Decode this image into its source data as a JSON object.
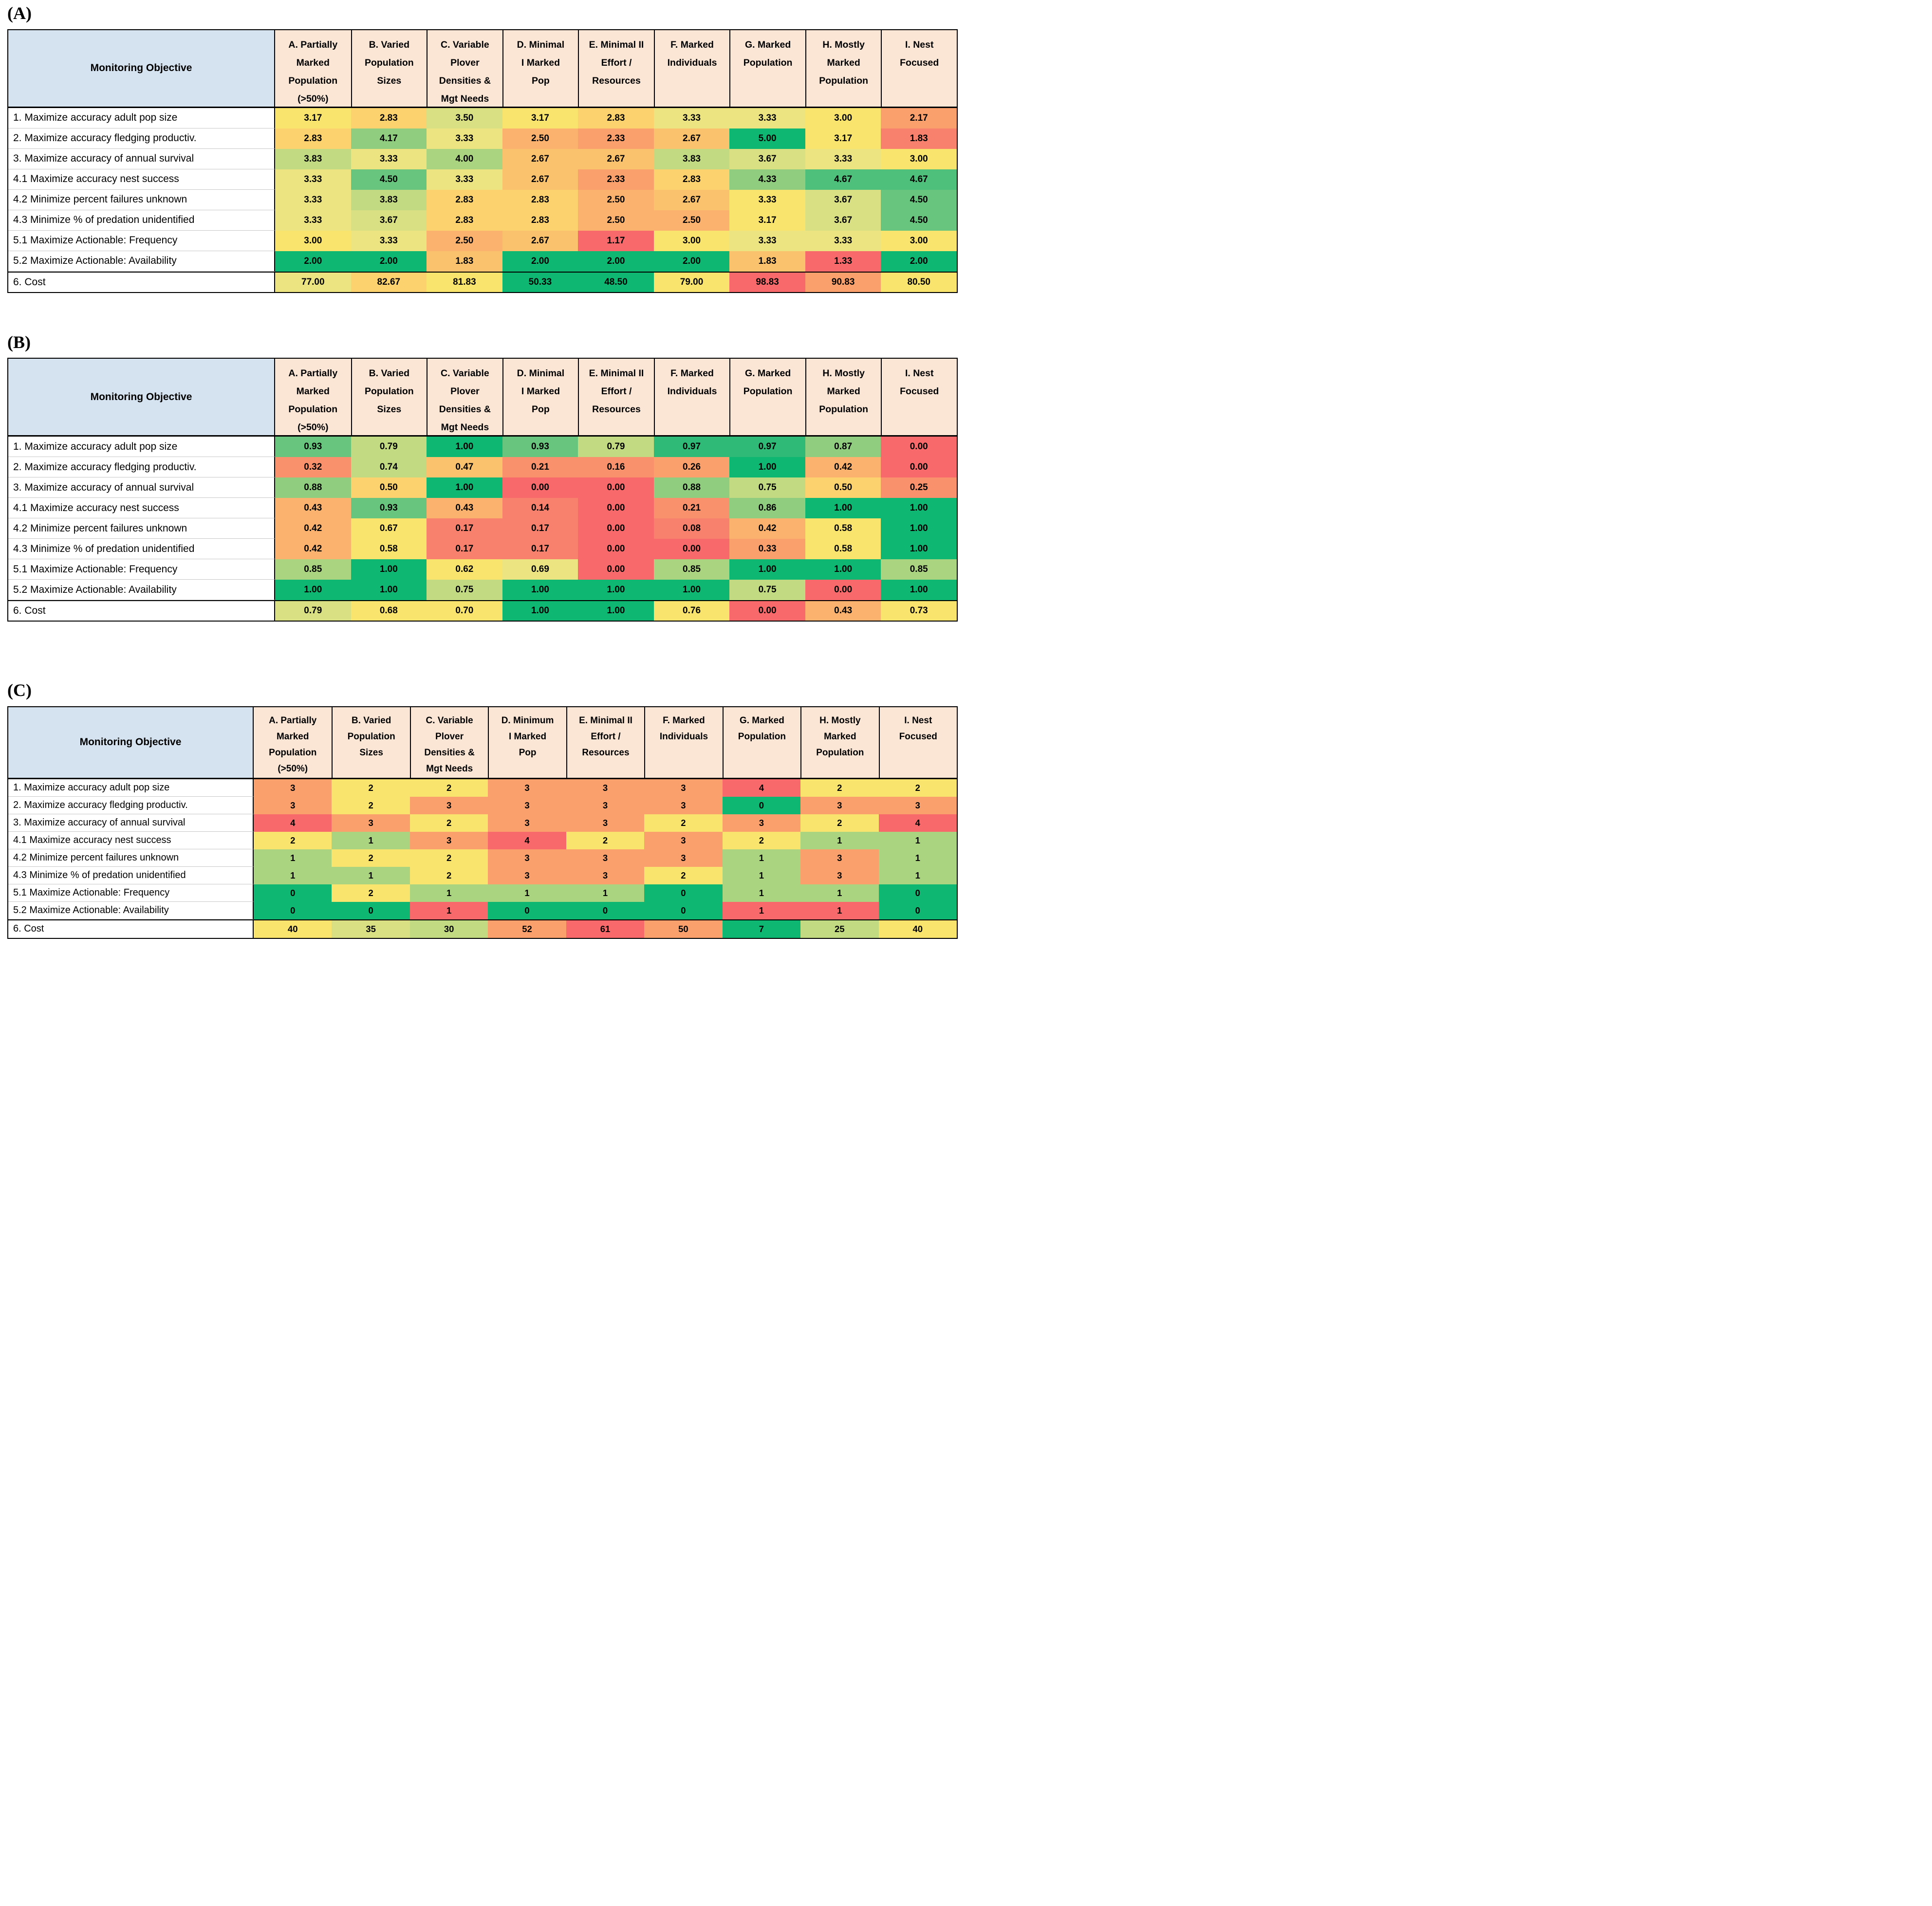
{
  "corner_label": "Monitoring Objective",
  "colors": {
    "header_bg": "#FBE5D5",
    "corner_bg": "#D5E3F1",
    "row_line": "#C8C8C8",
    "border": "#000000",
    "palette": {
      "G": "#0EB873",
      "G2": "#2FBB77",
      "g0": "#4FC07B",
      "g1": "#68C57D",
      "g2": "#90CD7E",
      "g3": "#ABD480",
      "g4": "#C2DB82",
      "yg": "#D8E083",
      "y1": "#EBE481",
      "Y": "#F9E56D",
      "yo": "#FBD26D",
      "o1": "#FBC26D",
      "o2": "#FBB26E",
      "o3": "#FAA06D",
      "o4": "#F9926C",
      "r1": "#F8816D",
      "R": "#F8696B"
    }
  },
  "chart_data": [
    {
      "type": "heatmap",
      "panel": "(A)",
      "corner_label": "Monitoring Objective",
      "columns": [
        "A. Partially\nMarked\nPopulation\n(>50%)",
        "B. Varied\nPopulation\nSizes",
        "C. Variable\nPlover\nDensities &\nMgt Needs",
        "D. Minimal\nI Marked\nPop",
        "E. Minimal II\nEffort /\nResources",
        "F. Marked\nIndividuals",
        "G. Marked\nPopulation",
        "H. Mostly\nMarked\nPopulation",
        "I. Nest\nFocused"
      ],
      "rows": [
        {
          "label": "1. Maximize accuracy adult pop size",
          "values": [
            "3.17",
            "2.83",
            "3.50",
            "3.17",
            "2.83",
            "3.33",
            "3.33",
            "3.00",
            "2.17"
          ],
          "colors": [
            "Y",
            "yo",
            "yg",
            "Y",
            "yo",
            "y1",
            "y1",
            "Y",
            "o3"
          ]
        },
        {
          "label": "2. Maximize accuracy fledging productiv.",
          "values": [
            "2.83",
            "4.17",
            "3.33",
            "2.50",
            "2.33",
            "2.67",
            "5.00",
            "3.17",
            "1.83"
          ],
          "colors": [
            "yo",
            "g2",
            "y1",
            "o2",
            "o3",
            "o1",
            "G",
            "Y",
            "r1"
          ]
        },
        {
          "label": "3. Maximize accuracy of annual survival",
          "values": [
            "3.83",
            "3.33",
            "4.00",
            "2.67",
            "2.67",
            "3.83",
            "3.67",
            "3.33",
            "3.00"
          ],
          "colors": [
            "g4",
            "y1",
            "g3",
            "o1",
            "o1",
            "g4",
            "yg",
            "y1",
            "Y"
          ]
        },
        {
          "label": "4.1 Maximize accuracy nest success",
          "values": [
            "3.33",
            "4.50",
            "3.33",
            "2.67",
            "2.33",
            "2.83",
            "4.33",
            "4.67",
            "4.67"
          ],
          "colors": [
            "y1",
            "g1",
            "y1",
            "o1",
            "o3",
            "yo",
            "g2",
            "g0",
            "g0"
          ]
        },
        {
          "label": "4.2 Minimize percent failures unknown",
          "values": [
            "3.33",
            "3.83",
            "2.83",
            "2.83",
            "2.50",
            "2.67",
            "3.33",
            "3.67",
            "4.50"
          ],
          "colors": [
            "y1",
            "g4",
            "yo",
            "yo",
            "o2",
            "o1",
            "Y",
            "yg",
            "g1"
          ]
        },
        {
          "label": "4.3 Minimize % of predation unidentified",
          "values": [
            "3.33",
            "3.67",
            "2.83",
            "2.83",
            "2.50",
            "2.50",
            "3.17",
            "3.67",
            "4.50"
          ],
          "colors": [
            "y1",
            "yg",
            "yo",
            "yo",
            "o2",
            "o2",
            "Y",
            "yg",
            "g1"
          ]
        },
        {
          "label": "5.1 Maximize Actionable: Frequency",
          "values": [
            "3.00",
            "3.33",
            "2.50",
            "2.67",
            "1.17",
            "3.00",
            "3.33",
            "3.33",
            "3.00"
          ],
          "colors": [
            "Y",
            "y1",
            "o2",
            "o1",
            "R",
            "Y",
            "y1",
            "y1",
            "Y"
          ]
        },
        {
          "label": "5.2 Maximize Actionable: Availability",
          "values": [
            "2.00",
            "2.00",
            "1.83",
            "2.00",
            "2.00",
            "2.00",
            "1.83",
            "1.33",
            "2.00"
          ],
          "colors": [
            "G",
            "G",
            "o1",
            "G",
            "G",
            "G",
            "o1",
            "R",
            "G"
          ]
        },
        {
          "label": "6. Cost",
          "values": [
            "77.00",
            "82.67",
            "81.83",
            "50.33",
            "48.50",
            "79.00",
            "98.83",
            "90.83",
            "80.50"
          ],
          "colors": [
            "y1",
            "yo",
            "Y",
            "G",
            "G",
            "Y",
            "R",
            "o3",
            "Y"
          ]
        }
      ]
    },
    {
      "type": "heatmap",
      "panel": "(B)",
      "corner_label": "Monitoring Objective",
      "columns": [
        "A. Partially\nMarked\nPopulation\n(>50%)",
        "B. Varied\nPopulation\nSizes",
        "C. Variable\nPlover\nDensities &\nMgt Needs",
        "D. Minimal\nI Marked\nPop",
        "E. Minimal II\nEffort /\nResources",
        "F. Marked\nIndividuals",
        "G. Marked\nPopulation",
        "H. Mostly\nMarked\nPopulation",
        "I. Nest\nFocused"
      ],
      "rows": [
        {
          "label": "1. Maximize accuracy adult pop size",
          "values": [
            "0.93",
            "0.79",
            "1.00",
            "0.93",
            "0.79",
            "0.97",
            "0.97",
            "0.87",
            "0.00"
          ],
          "colors": [
            "g1",
            "g4",
            "G",
            "g1",
            "g4",
            "G2",
            "G2",
            "g2",
            "R"
          ]
        },
        {
          "label": "2. Maximize accuracy fledging productiv.",
          "values": [
            "0.32",
            "0.74",
            "0.47",
            "0.21",
            "0.16",
            "0.26",
            "1.00",
            "0.42",
            "0.00"
          ],
          "colors": [
            "o4",
            "g4",
            "o1",
            "o4",
            "o4",
            "o3",
            "G",
            "o2",
            "R"
          ]
        },
        {
          "label": "3. Maximize accuracy of annual survival",
          "values": [
            "0.88",
            "0.50",
            "1.00",
            "0.00",
            "0.00",
            "0.88",
            "0.75",
            "0.50",
            "0.25"
          ],
          "colors": [
            "g2",
            "yo",
            "G",
            "R",
            "R",
            "g2",
            "g4",
            "yo",
            "o4"
          ]
        },
        {
          "label": "4.1 Maximize accuracy nest success",
          "values": [
            "0.43",
            "0.93",
            "0.43",
            "0.14",
            "0.00",
            "0.21",
            "0.86",
            "1.00",
            "1.00"
          ],
          "colors": [
            "o2",
            "g1",
            "o2",
            "r1",
            "R",
            "o4",
            "g2",
            "G",
            "G"
          ]
        },
        {
          "label": "4.2 Minimize percent failures unknown",
          "values": [
            "0.42",
            "0.67",
            "0.17",
            "0.17",
            "0.00",
            "0.08",
            "0.42",
            "0.58",
            "1.00"
          ],
          "colors": [
            "o2",
            "Y",
            "r1",
            "r1",
            "R",
            "r1",
            "o2",
            "Y",
            "G"
          ]
        },
        {
          "label": "4.3 Minimize % of predation unidentified",
          "values": [
            "0.42",
            "0.58",
            "0.17",
            "0.17",
            "0.00",
            "0.00",
            "0.33",
            "0.58",
            "1.00"
          ],
          "colors": [
            "o2",
            "Y",
            "r1",
            "r1",
            "R",
            "R",
            "o3",
            "Y",
            "G"
          ]
        },
        {
          "label": "5.1 Maximize Actionable: Frequency",
          "values": [
            "0.85",
            "1.00",
            "0.62",
            "0.69",
            "0.00",
            "0.85",
            "1.00",
            "1.00",
            "0.85"
          ],
          "colors": [
            "g3",
            "G",
            "Y",
            "y1",
            "R",
            "g3",
            "G",
            "G",
            "g3"
          ]
        },
        {
          "label": "5.2 Maximize Actionable: Availability",
          "values": [
            "1.00",
            "1.00",
            "0.75",
            "1.00",
            "1.00",
            "1.00",
            "0.75",
            "0.00",
            "1.00"
          ],
          "colors": [
            "G",
            "G",
            "g4",
            "G",
            "G",
            "G",
            "g4",
            "R",
            "G"
          ]
        },
        {
          "label": "6. Cost",
          "values": [
            "0.79",
            "0.68",
            "0.70",
            "1.00",
            "1.00",
            "0.76",
            "0.00",
            "0.43",
            "0.73"
          ],
          "colors": [
            "yg",
            "Y",
            "Y",
            "G",
            "G",
            "Y",
            "R",
            "o2",
            "Y"
          ]
        }
      ]
    },
    {
      "type": "heatmap",
      "panel": "(C)",
      "corner_label": "Monitoring Objective",
      "columns": [
        "A. Partially\nMarked\nPopulation\n(>50%)",
        "B. Varied\nPopulation\nSizes",
        "C. Variable\nPlover\nDensities &\nMgt Needs",
        "D. Minimum\nI Marked\nPop",
        "E. Minimal II\nEffort /\nResources",
        "F. Marked\nIndividuals",
        "G. Marked\nPopulation",
        "H. Mostly\nMarked\nPopulation",
        "I. Nest\nFocused"
      ],
      "rows": [
        {
          "label": "1. Maximize accuracy adult pop size",
          "values": [
            "3",
            "2",
            "2",
            "3",
            "3",
            "3",
            "4",
            "2",
            "2"
          ],
          "colors": [
            "o3",
            "Y",
            "Y",
            "o3",
            "o3",
            "o3",
            "R",
            "Y",
            "Y"
          ]
        },
        {
          "label": "2. Maximize accuracy fledging productiv.",
          "values": [
            "3",
            "2",
            "3",
            "3",
            "3",
            "3",
            "0",
            "3",
            "3"
          ],
          "colors": [
            "o3",
            "Y",
            "o3",
            "o3",
            "o3",
            "o3",
            "G",
            "o3",
            "o3"
          ]
        },
        {
          "label": "3. Maximize accuracy of annual survival",
          "values": [
            "4",
            "3",
            "2",
            "3",
            "3",
            "2",
            "3",
            "2",
            "4"
          ],
          "colors": [
            "R",
            "o3",
            "Y",
            "o3",
            "o3",
            "Y",
            "o3",
            "Y",
            "R"
          ]
        },
        {
          "label": "4.1 Maximize accuracy nest success",
          "values": [
            "2",
            "1",
            "3",
            "4",
            "2",
            "3",
            "2",
            "1",
            "1"
          ],
          "colors": [
            "Y",
            "g3",
            "o3",
            "R",
            "Y",
            "o3",
            "Y",
            "g3",
            "g3"
          ]
        },
        {
          "label": "4.2 Minimize percent failures unknown",
          "values": [
            "1",
            "2",
            "2",
            "3",
            "3",
            "3",
            "1",
            "3",
            "1"
          ],
          "colors": [
            "g3",
            "Y",
            "Y",
            "o3",
            "o3",
            "o3",
            "g3",
            "o3",
            "g3"
          ]
        },
        {
          "label": "4.3 Minimize % of predation unidentified",
          "values": [
            "1",
            "1",
            "2",
            "3",
            "3",
            "2",
            "1",
            "3",
            "1"
          ],
          "colors": [
            "g3",
            "g3",
            "Y",
            "o3",
            "o3",
            "Y",
            "g3",
            "o3",
            "g3"
          ]
        },
        {
          "label": "5.1 Maximize Actionable: Frequency",
          "values": [
            "0",
            "2",
            "1",
            "1",
            "1",
            "0",
            "1",
            "1",
            "0"
          ],
          "colors": [
            "G",
            "Y",
            "g3",
            "g3",
            "g3",
            "G",
            "g3",
            "g3",
            "G"
          ]
        },
        {
          "label": "5.2 Maximize Actionable: Availability",
          "values": [
            "0",
            "0",
            "1",
            "0",
            "0",
            "0",
            "1",
            "1",
            "0"
          ],
          "colors": [
            "G",
            "G",
            "R",
            "G",
            "G",
            "G",
            "R",
            "R",
            "G"
          ]
        },
        {
          "label": "6. Cost",
          "values": [
            "40",
            "35",
            "30",
            "52",
            "61",
            "50",
            "7",
            "25",
            "40"
          ],
          "colors": [
            "Y",
            "yg",
            "g4",
            "o3",
            "R",
            "o3",
            "G",
            "g4",
            "Y"
          ]
        }
      ]
    }
  ]
}
